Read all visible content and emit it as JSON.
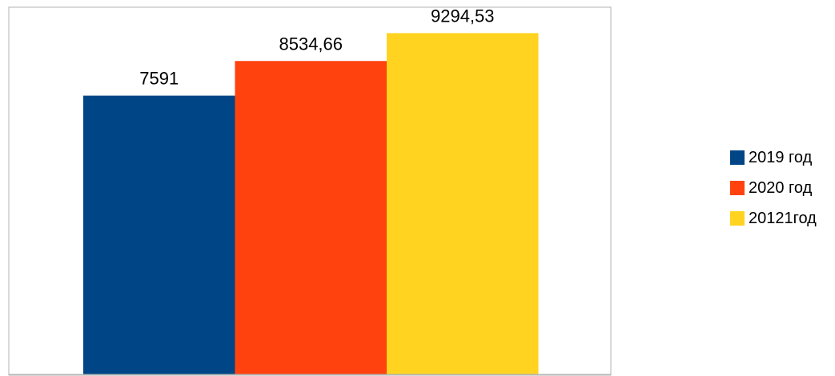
{
  "chart_data": {
    "type": "bar",
    "categories": [
      ""
    ],
    "series": [
      {
        "name": "2019 год",
        "values": [
          7591
        ],
        "label": "7591",
        "color": "#004586"
      },
      {
        "name": "2020 год",
        "values": [
          8534.66
        ],
        "label": "8534,66",
        "color": "#ff420e"
      },
      {
        "name": "20121год",
        "values": [
          9294.53
        ],
        "label": "9294,53",
        "color": "#ffd320"
      }
    ],
    "title": "",
    "xlabel": "",
    "ylabel": "",
    "ylim": [
      0,
      10000
    ],
    "grid": false,
    "legend": "right"
  }
}
